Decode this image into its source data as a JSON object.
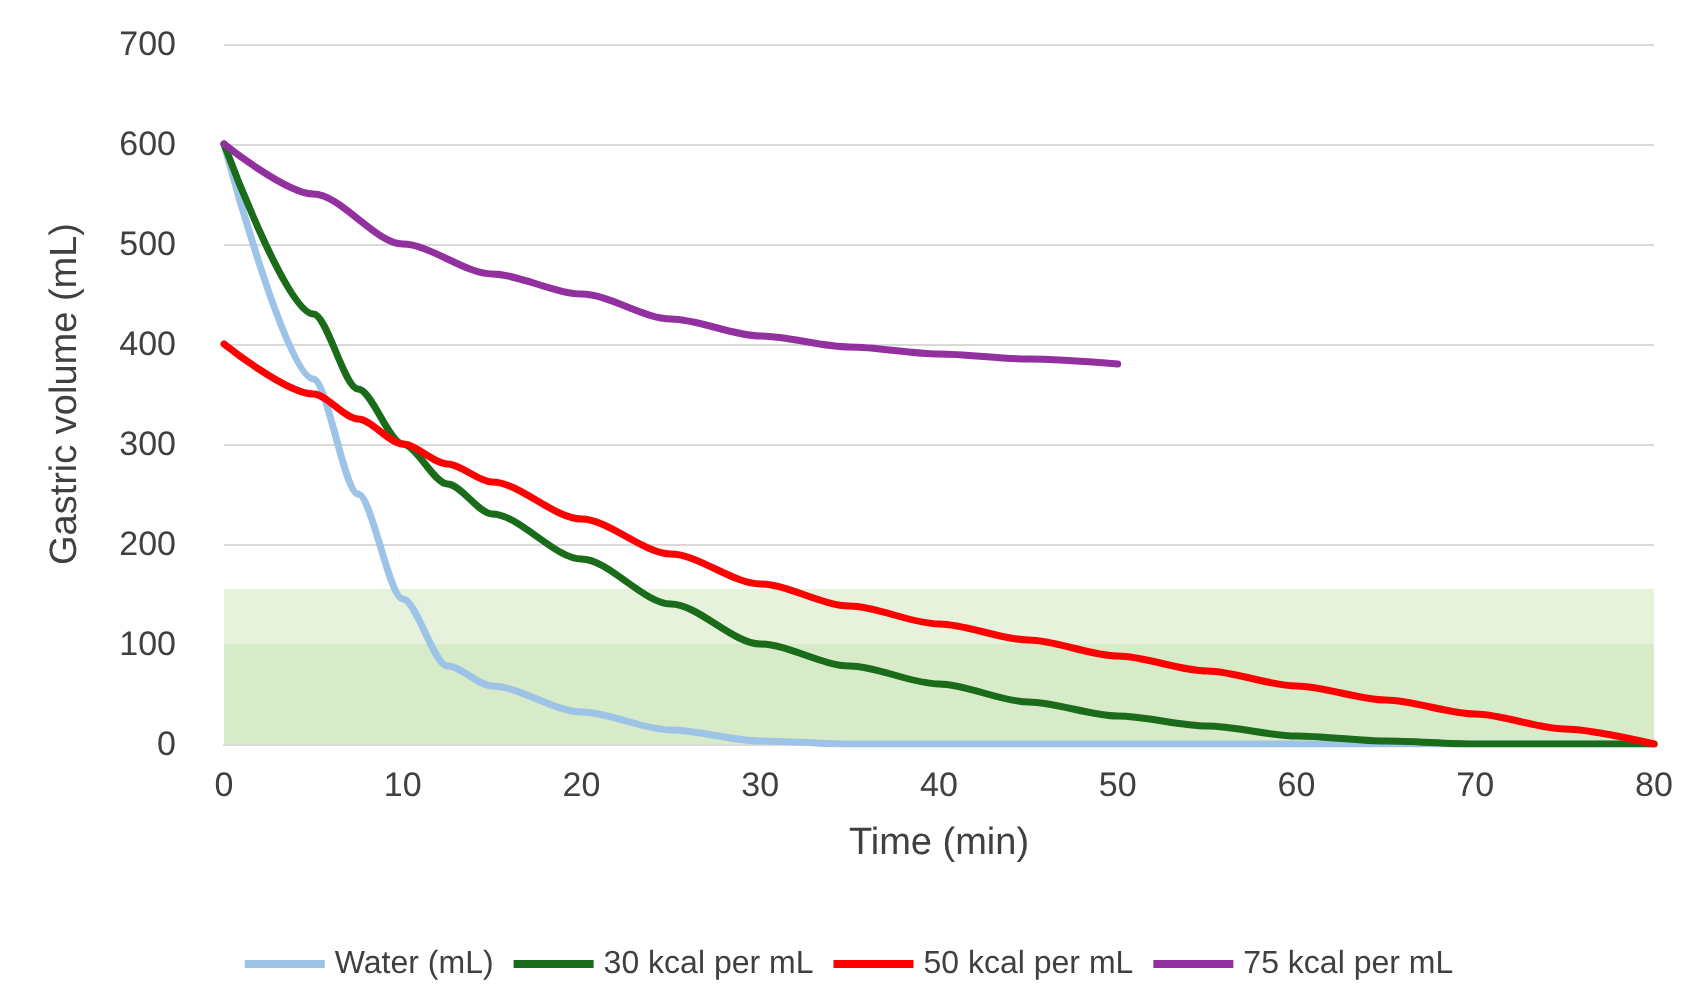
{
  "chart_data": {
    "type": "line",
    "xlabel": "Time (min)",
    "ylabel": "Gastric volume (mL)",
    "x": [
      0,
      5,
      7.5,
      10,
      12.5,
      15,
      20,
      25,
      30,
      35,
      40,
      45,
      50,
      55,
      60,
      65,
      70,
      75,
      80
    ],
    "series": [
      {
        "name": "Water (mL)",
        "color": "#9dc3e6",
        "values": [
          600,
          365,
          250,
          145,
          78,
          58,
          32,
          14,
          3,
          0,
          0,
          0,
          0,
          0,
          0,
          0,
          0,
          0,
          0
        ]
      },
      {
        "name": "30 kcal per mL",
        "color": "#1a6b1a",
        "values": [
          600,
          430,
          355,
          300,
          260,
          230,
          185,
          140,
          100,
          78,
          60,
          42,
          28,
          18,
          8,
          3,
          0,
          0,
          0
        ]
      },
      {
        "name": "50 kcal per mL",
        "color": "#ff0000",
        "values": [
          400,
          350,
          325,
          300,
          280,
          262,
          225,
          190,
          160,
          138,
          120,
          104,
          88,
          73,
          58,
          44,
          30,
          15,
          0
        ]
      },
      {
        "name": "75 kcal per mL",
        "color": "#93309f",
        "x": [
          0,
          5,
          10,
          15,
          20,
          25,
          30,
          35,
          40,
          45,
          50
        ],
        "values": [
          600,
          550,
          500,
          470,
          450,
          425,
          408,
          397,
          390,
          385,
          380
        ]
      }
    ],
    "xlim": [
      0,
      80
    ],
    "xticks": [
      0,
      10,
      20,
      30,
      40,
      50,
      60,
      70,
      80
    ],
    "ylim": [
      0,
      700
    ],
    "yticks": [
      0,
      100,
      200,
      300,
      400,
      500,
      600,
      700
    ],
    "bands": [
      {
        "axis": "y",
        "from": 0,
        "to": 100,
        "color": "#d8ebc8"
      },
      {
        "axis": "y",
        "from": 100,
        "to": 155,
        "color": "#e6f2dc"
      }
    ],
    "grid": "y",
    "legend": "bottom",
    "marker": "none",
    "line_style": "solid"
  }
}
